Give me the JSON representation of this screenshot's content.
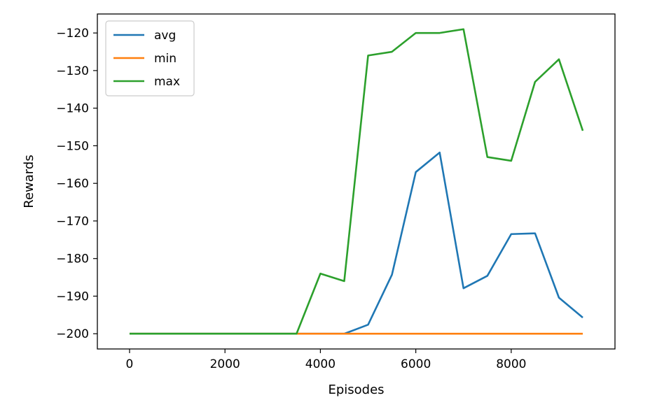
{
  "chart_data": {
    "type": "line",
    "title": "",
    "xlabel": "Episodes",
    "ylabel": "Rewards",
    "x": [
      0,
      500,
      1000,
      1500,
      2000,
      2500,
      3000,
      3500,
      4000,
      4500,
      5000,
      5500,
      6000,
      6500,
      7000,
      7500,
      8000,
      8500,
      9000,
      9500
    ],
    "series": [
      {
        "name": "avg",
        "color": "#1f77b4",
        "values": [
          -200,
          -200,
          -200,
          -200,
          -200,
          -200,
          -200,
          -200,
          -200,
          -200,
          -197.6,
          -184.3,
          -157,
          -151.8,
          -187.9,
          -184.6,
          -173.5,
          -173.3,
          -190.4,
          -195.7
        ]
      },
      {
        "name": "min",
        "color": "#ff7f0e",
        "values": [
          -200,
          -200,
          -200,
          -200,
          -200,
          -200,
          -200,
          -200,
          -200,
          -200,
          -200,
          -200,
          -200,
          -200,
          -200,
          -200,
          -200,
          -200,
          -200,
          -200
        ]
      },
      {
        "name": "max",
        "color": "#2ca02c",
        "values": [
          -200,
          -200,
          -200,
          -200,
          -200,
          -200,
          -200,
          -200,
          -184,
          -186,
          -126,
          -125,
          -120,
          -120,
          -119,
          -153,
          -154,
          -133,
          -127,
          -146
        ]
      }
    ],
    "xlim": [
      -675,
      10175
    ],
    "ylim": [
      -204.05,
      -114.95
    ],
    "xticks": [
      0,
      2000,
      4000,
      6000,
      8000
    ],
    "xtick_labels": [
      "0",
      "2000",
      "4000",
      "6000",
      "8000"
    ],
    "yticks": [
      -120,
      -130,
      -140,
      -150,
      -160,
      -170,
      -180,
      -190,
      -200
    ],
    "ytick_labels": [
      "−120",
      "−130",
      "−140",
      "−150",
      "−160",
      "−170",
      "−180",
      "−190",
      "−200"
    ],
    "legend_position": "upper-left",
    "grid": false
  }
}
